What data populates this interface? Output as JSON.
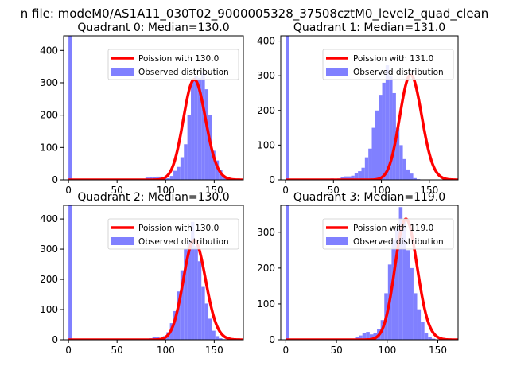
{
  "suptitle": "n file: modeM0/AS1A11_030T02_9000005328_37508cztM0_level2_quad_clean",
  "chart_data": [
    {
      "type": "bar",
      "title": "Quadrant 0: Median=130.0",
      "xlim": [
        -5,
        180
      ],
      "ylim": [
        0,
        445
      ],
      "xticks": [
        0,
        50,
        100,
        150
      ],
      "yticks": [
        0,
        100,
        200,
        300,
        400
      ],
      "legend_position": "upper right",
      "poisson_mean": 130,
      "series": [
        {
          "name": "Poission with 130.0",
          "kind": "line",
          "color": "#ff0000"
        },
        {
          "name": "Observed distribution",
          "kind": "histogram",
          "color": "#8080ff"
        }
      ],
      "bin_width": 3.6,
      "hist_start": 0,
      "hist_counts": [
        445,
        0,
        0,
        0,
        0,
        0,
        0,
        0,
        0,
        0,
        0,
        0,
        0,
        0,
        0,
        0,
        0,
        0,
        0,
        0,
        0,
        0,
        7,
        8,
        9,
        10,
        10,
        4,
        5,
        12,
        28,
        40,
        70,
        110,
        200,
        310,
        320,
        315,
        330,
        280,
        200,
        90,
        60,
        30,
        8,
        4,
        1
      ]
    },
    {
      "type": "bar",
      "title": "Quadrant 1: Median=131.0",
      "xlim": [
        -5,
        180
      ],
      "ylim": [
        0,
        415
      ],
      "xticks": [
        0,
        50,
        100,
        150
      ],
      "yticks": [
        0,
        100,
        200,
        300,
        400
      ],
      "legend_position": "upper right",
      "poisson_mean": 131,
      "series": [
        {
          "name": "Poission with 131.0",
          "kind": "line",
          "color": "#ff0000"
        },
        {
          "name": "Observed distribution",
          "kind": "histogram",
          "color": "#8080ff"
        }
      ],
      "bin_width": 3.6,
      "hist_start": 0,
      "hist_counts": [
        415,
        0,
        0,
        0,
        0,
        0,
        0,
        0,
        0,
        0,
        0,
        3,
        3,
        4,
        2,
        4,
        7,
        10,
        10,
        12,
        20,
        25,
        35,
        65,
        90,
        150,
        200,
        245,
        280,
        330,
        300,
        250,
        150,
        100,
        60,
        30,
        18,
        5,
        2,
        0,
        0,
        1
      ]
    },
    {
      "type": "bar",
      "title": "Quadrant 2: Median=130.0",
      "xlim": [
        -5,
        180
      ],
      "ylim": [
        0,
        445
      ],
      "xticks": [
        0,
        50,
        100,
        150
      ],
      "yticks": [
        0,
        100,
        200,
        300,
        400
      ],
      "legend_position": "upper right",
      "poisson_mean": 130,
      "series": [
        {
          "name": "Poission with 130.0",
          "kind": "line",
          "color": "#ff0000"
        },
        {
          "name": "Observed distribution",
          "kind": "histogram",
          "color": "#8080ff"
        }
      ],
      "bin_width": 3.6,
      "hist_start": 0,
      "hist_counts": [
        445,
        0,
        0,
        0,
        0,
        0,
        0,
        0,
        0,
        0,
        0,
        0,
        0,
        0,
        0,
        0,
        0,
        0,
        0,
        0,
        0,
        2,
        3,
        5,
        8,
        10,
        5,
        12,
        25,
        55,
        95,
        160,
        230,
        300,
        330,
        390,
        310,
        260,
        175,
        120,
        70,
        30,
        12,
        5,
        2,
        1
      ]
    },
    {
      "type": "bar",
      "title": "Quadrant 3: Median=119.0",
      "xlim": [
        -5,
        170
      ],
      "ylim": [
        0,
        375
      ],
      "xticks": [
        0,
        50,
        100,
        150
      ],
      "yticks": [
        0,
        100,
        200,
        300
      ],
      "legend_position": "upper right",
      "poisson_mean": 119,
      "series": [
        {
          "name": "Poission with 119.0",
          "kind": "line",
          "color": "#ff0000"
        },
        {
          "name": "Observed distribution",
          "kind": "histogram",
          "color": "#8080ff"
        }
      ],
      "bin_width": 3.6,
      "hist_start": 0,
      "hist_counts": [
        375,
        0,
        0,
        0,
        0,
        0,
        0,
        0,
        0,
        0,
        0,
        0,
        0,
        0,
        0,
        0,
        0,
        2,
        3,
        8,
        12,
        18,
        22,
        15,
        18,
        30,
        55,
        130,
        210,
        280,
        310,
        370,
        330,
        250,
        200,
        130,
        85,
        50,
        20,
        8,
        3,
        1
      ]
    }
  ]
}
